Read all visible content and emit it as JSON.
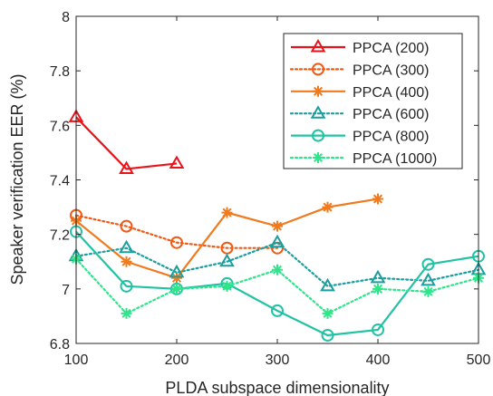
{
  "chart_data": {
    "type": "line",
    "title": "",
    "xlabel": "PLDA subspace dimensionality",
    "ylabel": "Speaker verification EER (%)",
    "xlim": [
      100,
      500
    ],
    "ylim": [
      6.8,
      8
    ],
    "xticks": [
      100,
      200,
      300,
      400,
      500
    ],
    "xtick_labels": [
      "100",
      "200",
      "300",
      "400",
      "500"
    ],
    "yticks": [
      6.8,
      7,
      7.2,
      7.4,
      7.6,
      7.8,
      8
    ],
    "ytick_labels": [
      "6.8",
      "7",
      "7.2",
      "7.4",
      "7.6",
      "7.8",
      "8"
    ],
    "grid": false,
    "legend_position": "top-right",
    "series": [
      {
        "name": "PPCA (200)",
        "color": "#e8141c",
        "dash": "solid",
        "marker": "triangle",
        "x": [
          100,
          150,
          200
        ],
        "values": [
          7.63,
          7.44,
          7.46
        ]
      },
      {
        "name": "PPCA (300)",
        "color": "#f05a14",
        "dash": "dotted",
        "marker": "circle",
        "x": [
          100,
          150,
          200,
          250,
          300
        ],
        "values": [
          7.27,
          7.23,
          7.17,
          7.15,
          7.15
        ]
      },
      {
        "name": "PPCA (400)",
        "color": "#f07a1e",
        "dash": "solid",
        "marker": "asterisk",
        "x": [
          100,
          150,
          200,
          250,
          300,
          350,
          400
        ],
        "values": [
          7.25,
          7.1,
          7.04,
          7.28,
          7.23,
          7.3,
          7.33
        ]
      },
      {
        "name": "PPCA (600)",
        "color": "#1a9e9e",
        "dash": "dotted",
        "marker": "triangle",
        "x": [
          100,
          150,
          200,
          250,
          300,
          350,
          400,
          450,
          500
        ],
        "values": [
          7.12,
          7.15,
          7.06,
          7.1,
          7.17,
          7.01,
          7.04,
          7.03,
          7.07
        ]
      },
      {
        "name": "PPCA (800)",
        "color": "#22c2a4",
        "dash": "solid",
        "marker": "circle",
        "x": [
          100,
          150,
          200,
          250,
          300,
          350,
          400,
          450,
          500
        ],
        "values": [
          7.21,
          7.01,
          7.0,
          7.02,
          6.92,
          6.83,
          6.85,
          7.09,
          7.12
        ]
      },
      {
        "name": "PPCA (1000)",
        "color": "#2ee58a",
        "dash": "dotted",
        "marker": "asterisk",
        "x": [
          100,
          150,
          200,
          250,
          300,
          350,
          400,
          450,
          500
        ],
        "values": [
          7.11,
          6.91,
          7.0,
          7.01,
          7.07,
          6.91,
          7.0,
          6.99,
          7.04
        ]
      }
    ]
  }
}
